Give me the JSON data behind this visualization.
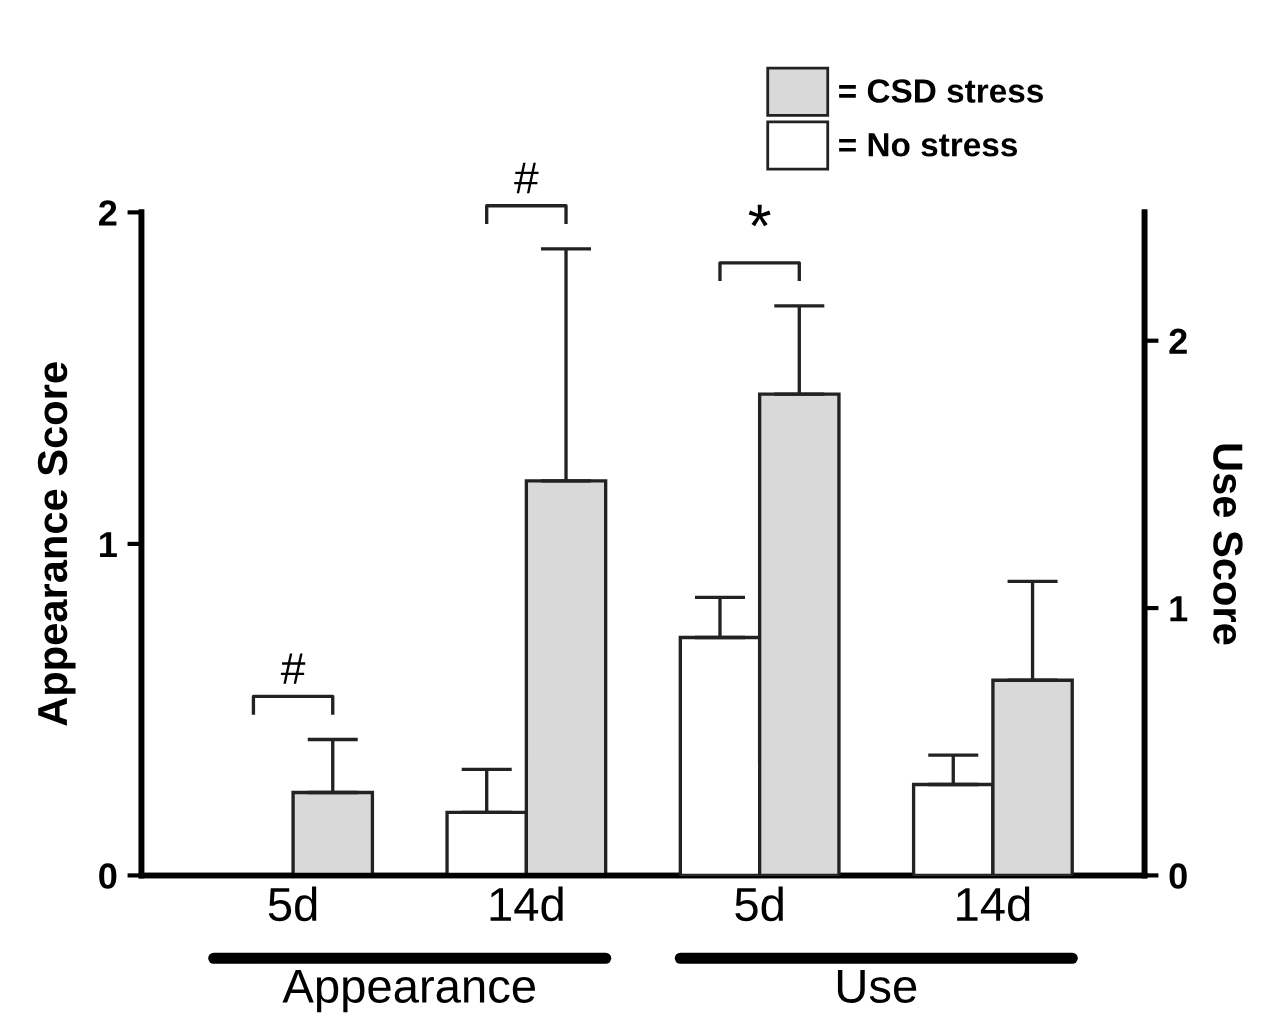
{
  "chart_data": {
    "type": "bar",
    "categories": [
      "5d",
      "14d",
      "5d",
      "14d"
    ],
    "ylabel": "Appearance Score",
    "y2label": "Use Score",
    "ylim": [
      0,
      2
    ],
    "yticks": [
      0,
      1,
      2
    ],
    "y2lim": [
      0,
      2.48
    ],
    "y2ticks": [
      0,
      1,
      2
    ],
    "series": [
      {
        "name": "= No stress",
        "color": "#ffffff",
        "values": [
          null,
          0.19,
          null,
          null
        ],
        "errors": [
          null,
          [
            0.19,
            0.32
          ],
          null,
          null
        ]
      },
      {
        "name": "= CSD stress",
        "color": "#d9d9d9",
        "values": [
          0.25,
          1.19,
          null,
          null
        ],
        "errors": [
          [
            0.25,
            0.41
          ],
          [
            1.19,
            1.89
          ],
          null,
          null
        ]
      },
      {
        "color": "#ffffff",
        "axis": "y2",
        "values": [
          null,
          null,
          0.89,
          0.34
        ],
        "errors": [
          null,
          null,
          [
            0.89,
            1.04
          ],
          [
            0.34,
            0.45
          ]
        ]
      },
      {
        "color": "#d9d9d9",
        "axis": "y2",
        "values": [
          null,
          null,
          1.8,
          0.73
        ],
        "errors": [
          null,
          null,
          [
            1.8,
            2.13
          ],
          [
            0.73,
            1.1
          ]
        ]
      }
    ],
    "annotations": [
      "#",
      "#",
      "*",
      "Appearance",
      "Use"
    ],
    "legend": "top right",
    "grid": false
  }
}
